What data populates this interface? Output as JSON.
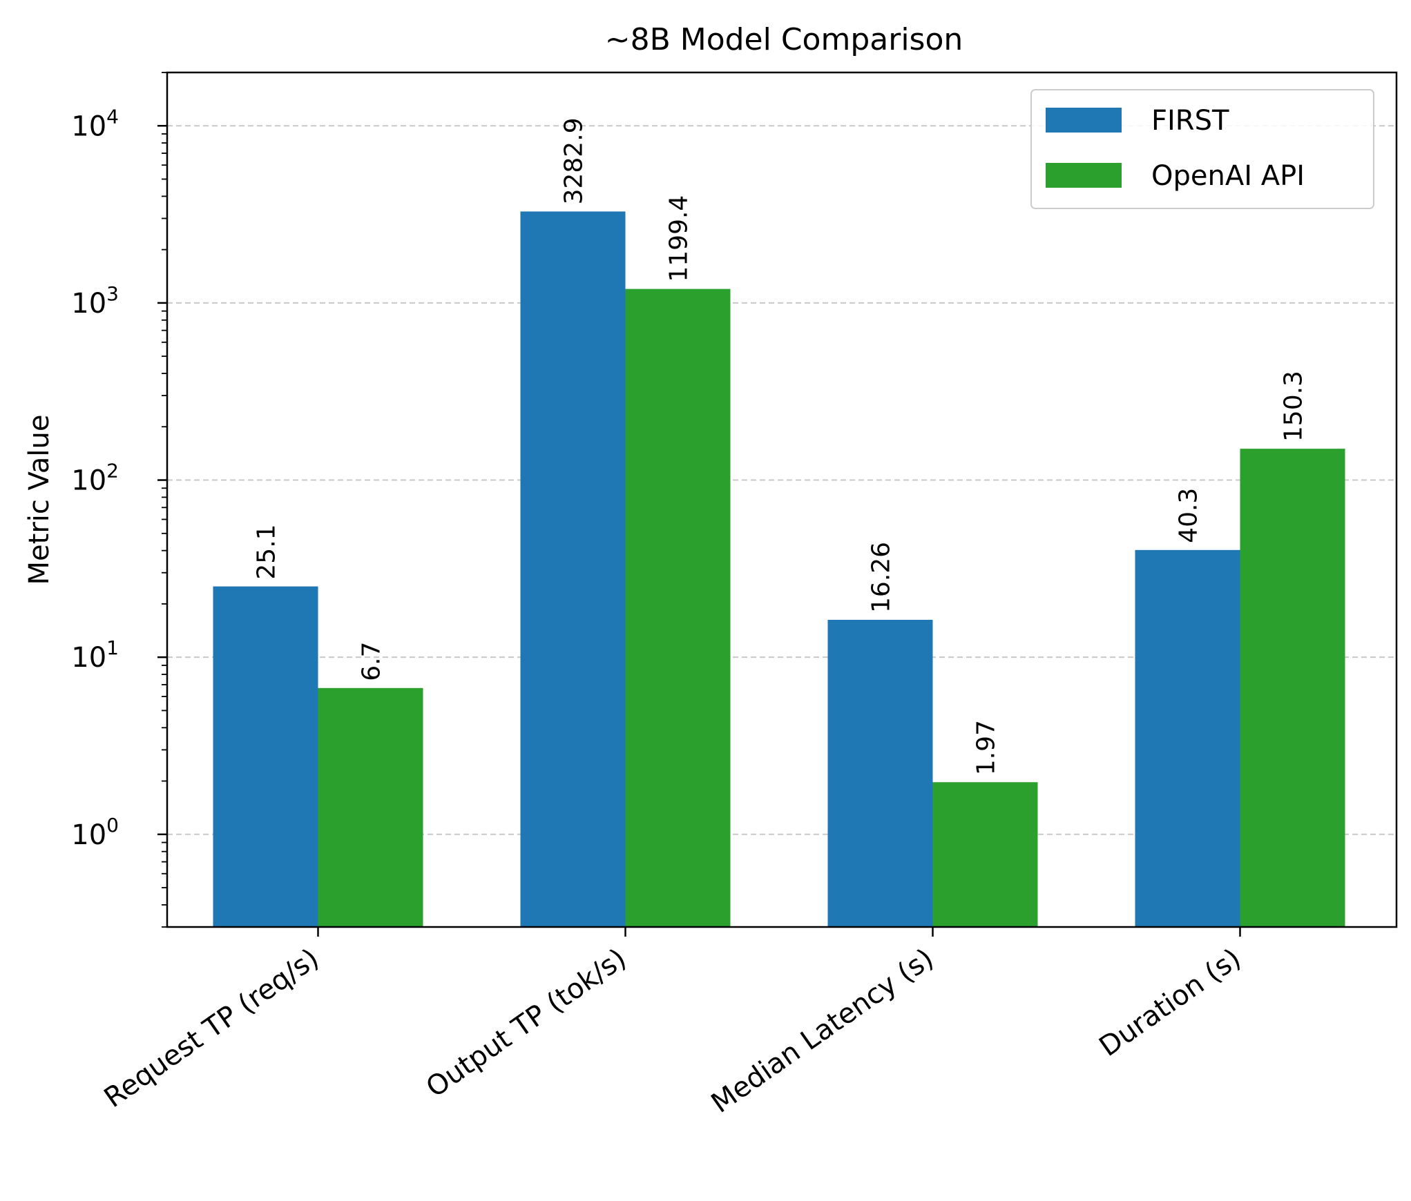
{
  "chart_data": {
    "type": "bar",
    "title": "~8B Model Comparison",
    "xlabel": "",
    "ylabel": "Metric Value",
    "yscale": "log",
    "ylim": [
      0.3,
      20000
    ],
    "categories": [
      "Request TP (req/s)",
      "Output TP (tok/s)",
      "Median Latency (s)",
      "Duration (s)"
    ],
    "series": [
      {
        "name": "FIRST",
        "color": "#1f77b4",
        "values": [
          25.1,
          3282.9,
          16.26,
          40.3
        ],
        "labels": [
          "25.1",
          "3282.9",
          "16.26",
          "40.3"
        ]
      },
      {
        "name": "OpenAI API",
        "color": "#2ca02c",
        "values": [
          6.7,
          1199.4,
          1.97,
          150.3
        ],
        "labels": [
          "6.7",
          "1199.4",
          "1.97",
          "150.3"
        ]
      }
    ],
    "yticks": [
      {
        "value": 1,
        "base": "10",
        "exp": "0"
      },
      {
        "value": 10,
        "base": "10",
        "exp": "1"
      },
      {
        "value": 100,
        "base": "10",
        "exp": "2"
      },
      {
        "value": 1000,
        "base": "10",
        "exp": "3"
      },
      {
        "value": 10000,
        "base": "10",
        "exp": "4"
      }
    ],
    "grid": "y-major dashed",
    "legend_position": "top-right"
  }
}
